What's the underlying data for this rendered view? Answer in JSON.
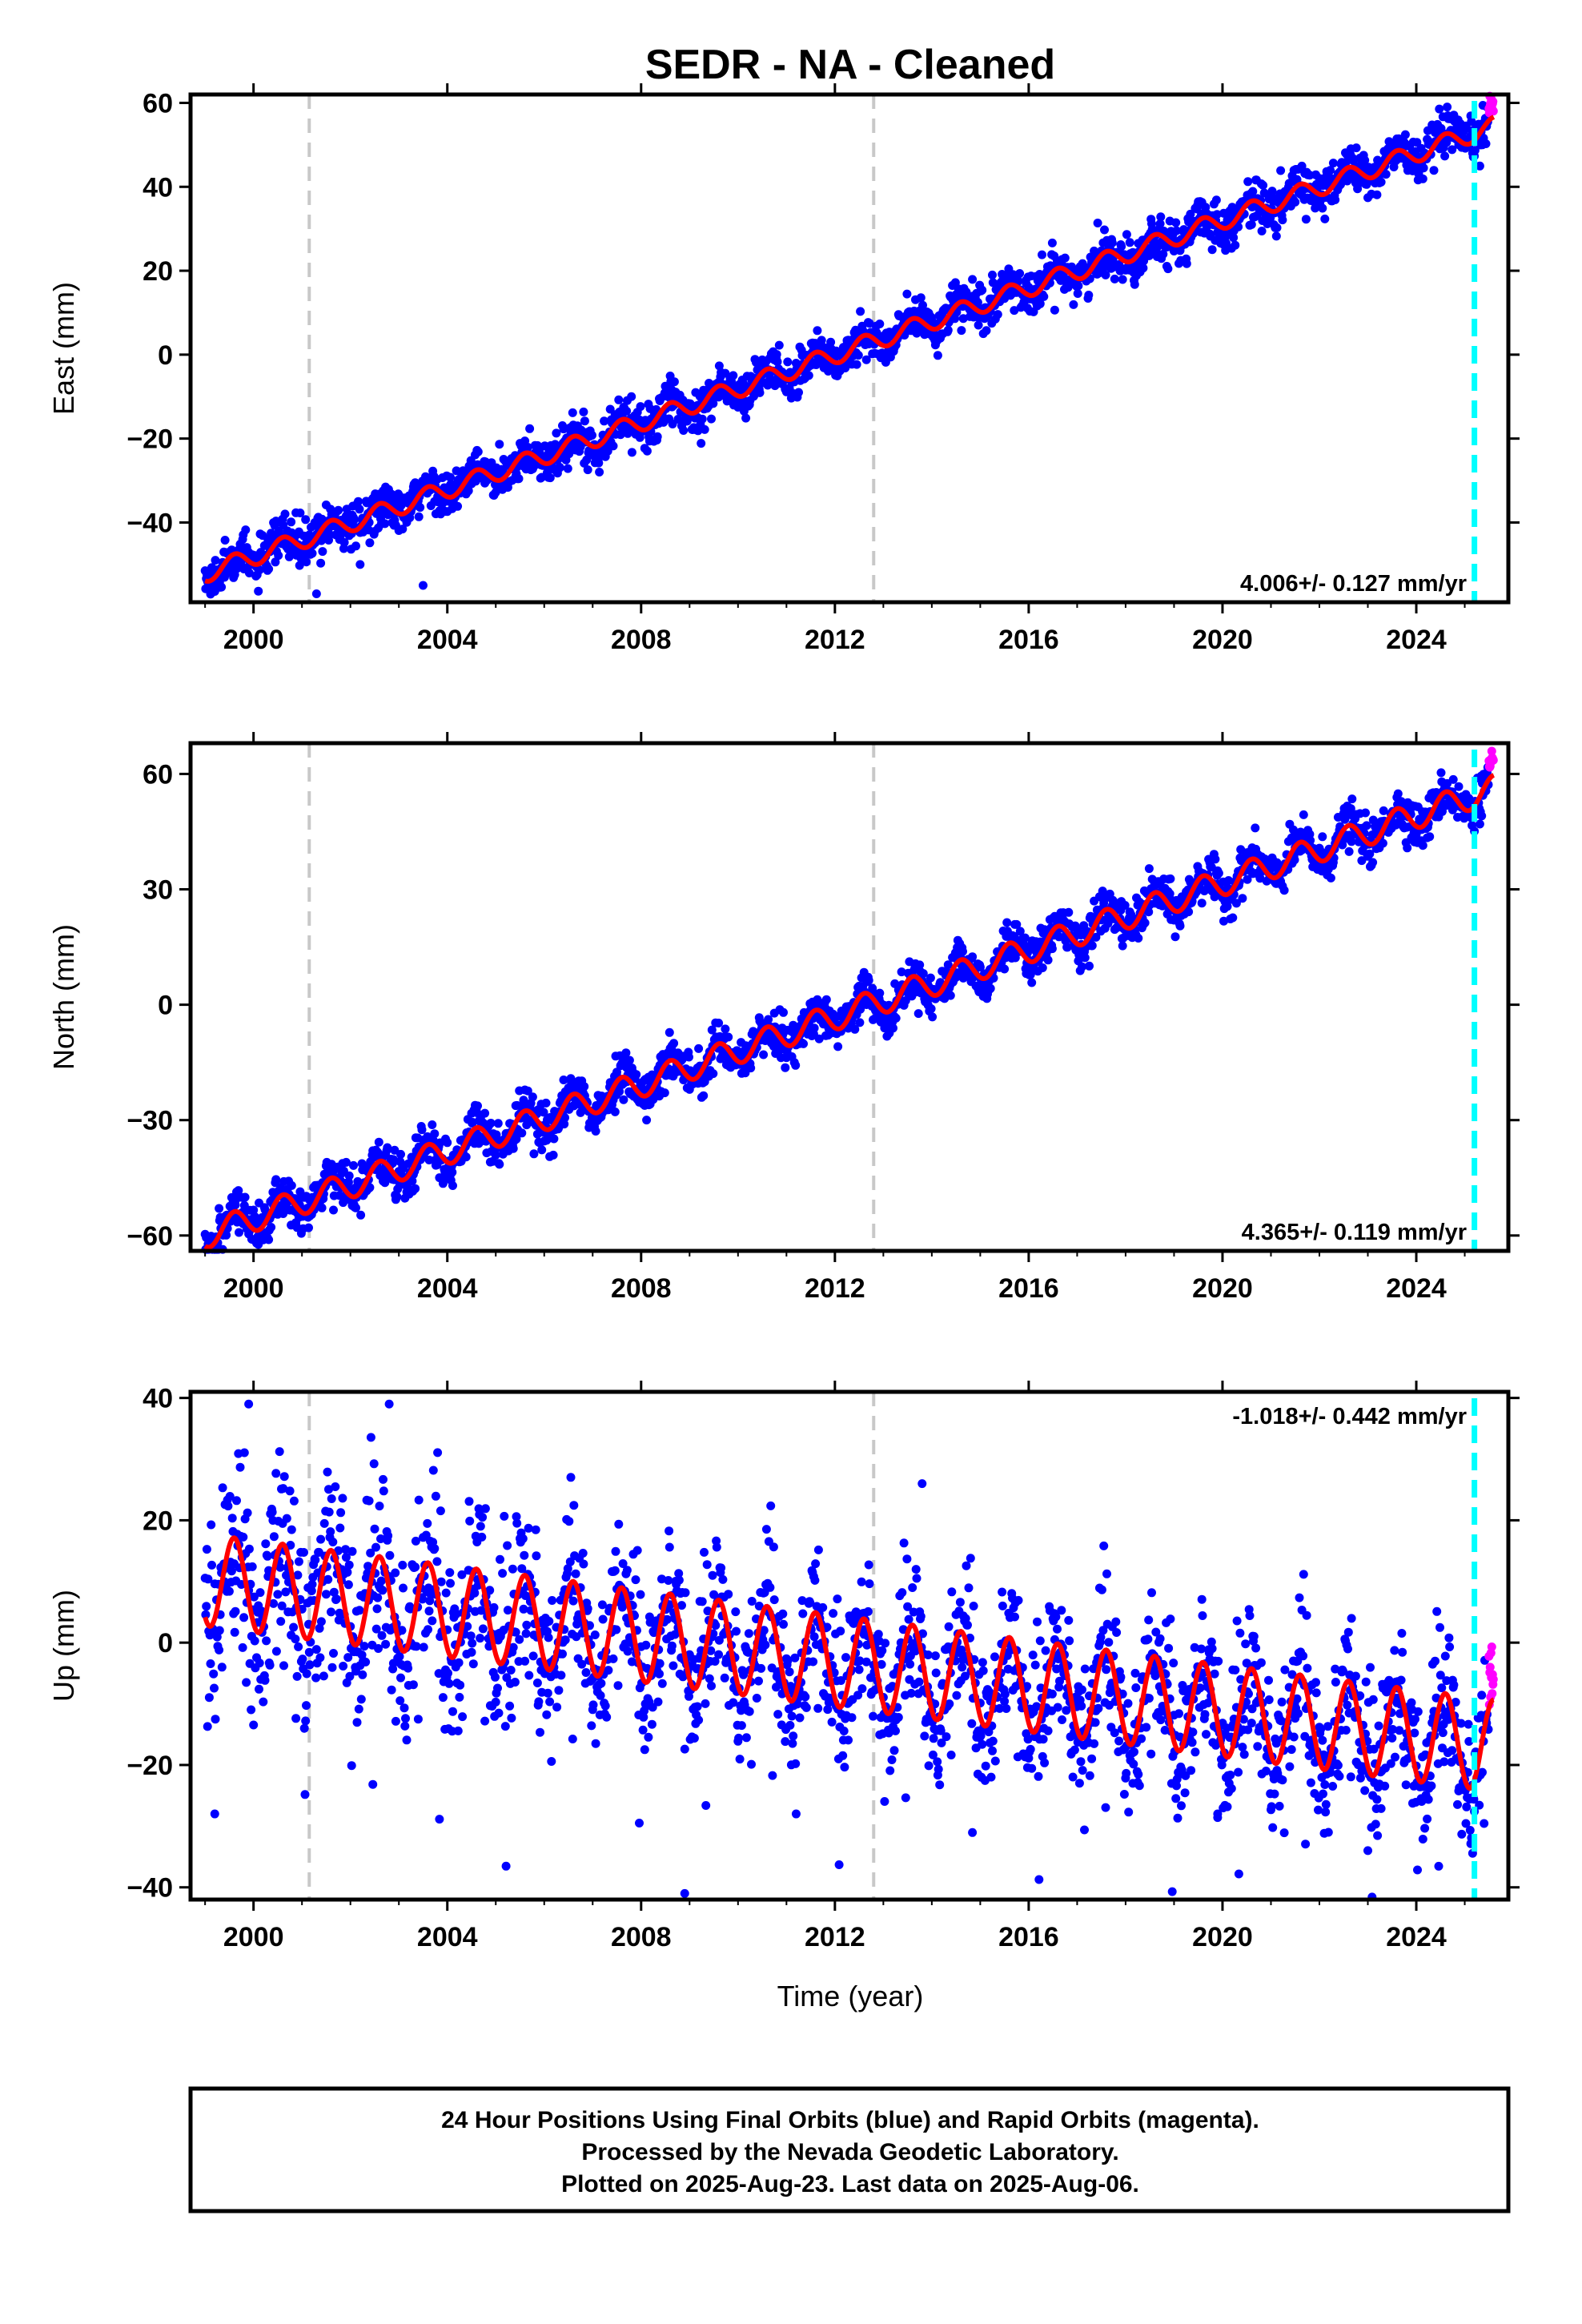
{
  "colors": {
    "final_orbits": "#0000ff",
    "rapid_orbits": "#ff00ff",
    "model": "#ff0000",
    "equipment_change": "#c8c8c8",
    "recent_marker": "#00ffff"
  },
  "chart_data": [
    {
      "type": "scatter",
      "title": "SEDR  - NA - Cleaned",
      "xlabel": "",
      "ylabel": "East (mm)",
      "xlim": [
        1998.7,
        2025.9
      ],
      "ylim": [
        -59,
        62
      ],
      "xticks": [
        "2000",
        "2004",
        "2008",
        "2012",
        "2016",
        "2020",
        "2024"
      ],
      "yticks": [
        "−40",
        "−20",
        "0",
        "20",
        "40",
        "60"
      ],
      "rate_label": "4.006+/- 0.127 mm/yr",
      "rate_label_position": "bottom-right",
      "series": [
        {
          "kind": "final",
          "slope": 4.006,
          "intercept": 1.95,
          "annual": 2.2,
          "noise": 2.6,
          "start": 1999.0,
          "end": 2025.5
        },
        {
          "kind": "rapid",
          "slope": 4.006,
          "intercept": 1.95,
          "annual": 2.2,
          "noise": 2.6,
          "start": 2025.5,
          "end": 2025.6
        },
        {
          "kind": "model",
          "slope": 4.006,
          "intercept": 1.95,
          "annual": 2.2,
          "start": 1999.0,
          "end": 2025.6
        }
      ],
      "dashed_gray_years": [
        2001.15,
        2012.8
      ],
      "dashed_cyan_year": 2025.2,
      "outliers": [
        [
          2001.3,
          -57
        ],
        [
          2003.5,
          -55
        ],
        [
          2002.2,
          -50
        ],
        [
          2007.8,
          -10
        ]
      ]
    },
    {
      "type": "scatter",
      "title": "",
      "xlabel": "",
      "ylabel": "North (mm)",
      "xlim": [
        1998.7,
        2025.9
      ],
      "ylim": [
        -64,
        68
      ],
      "xticks": [
        "2000",
        "2004",
        "2008",
        "2012",
        "2016",
        "2020",
        "2024"
      ],
      "yticks": [
        "−60",
        "−30",
        "0",
        "30",
        "60"
      ],
      "rate_label": "4.365+/- 0.119 mm/yr",
      "rate_label_position": "bottom-right",
      "series": [
        {
          "kind": "final",
          "slope": 4.365,
          "intercept": -1.0,
          "annual": 3.5,
          "noise": 2.8,
          "start": 1999.0,
          "end": 2025.5
        },
        {
          "kind": "rapid",
          "slope": 4.365,
          "intercept": -1.0,
          "annual": 3.5,
          "noise": 2.8,
          "start": 2025.5,
          "end": 2025.6
        },
        {
          "kind": "model",
          "slope": 4.365,
          "intercept": -1.0,
          "annual": 3.5,
          "start": 1999.0,
          "end": 2025.6
        }
      ],
      "dashed_gray_years": [
        2001.15,
        2012.8
      ],
      "dashed_cyan_year": 2025.2,
      "outliers": []
    },
    {
      "type": "scatter",
      "title": "",
      "xlabel": "Time (year)",
      "ylabel": "Up (mm)",
      "xlim": [
        1998.7,
        2025.9
      ],
      "ylim": [
        -42,
        41
      ],
      "xticks": [
        "2000",
        "2004",
        "2008",
        "2012",
        "2016",
        "2020",
        "2024"
      ],
      "yticks": [
        "−40",
        "−20",
        "0",
        "20",
        "40"
      ],
      "rate_label": "-1.018+/- 0.442 mm/yr",
      "rate_label_position": "top-right",
      "series": [
        {
          "kind": "final",
          "slope": -1.018,
          "intercept": -3.5,
          "annual": 7.5,
          "noise": 6.5,
          "start": 1999.0,
          "end": 2025.5
        },
        {
          "kind": "rapid",
          "slope": -1.018,
          "intercept": -3.5,
          "annual": 7.5,
          "noise": 6.5,
          "start": 2025.5,
          "end": 2025.6
        },
        {
          "kind": "model",
          "slope": -1.018,
          "intercept": -3.5,
          "annual": 7.5,
          "start": 1999.0,
          "end": 2025.6
        }
      ],
      "dashed_gray_years": [
        2001.15,
        2012.8
      ],
      "dashed_cyan_year": 2025.2,
      "outliers": [
        [
          1999.2,
          -28
        ],
        [
          2008.9,
          -41
        ],
        [
          2011.2,
          -28
        ],
        [
          2023.0,
          -34
        ],
        [
          1999.9,
          39
        ],
        [
          2002.8,
          39
        ],
        [
          2013.8,
          26
        ],
        [
          2019.9,
          -28
        ]
      ]
    }
  ],
  "footer": {
    "line1": "24 Hour Positions Using Final Orbits (blue) and Rapid Orbits (magenta).",
    "line2": "Processed by the Nevada Geodetic Laboratory.",
    "line3": "Plotted on 2025-Aug-23. Last data on 2025-Aug-06."
  }
}
